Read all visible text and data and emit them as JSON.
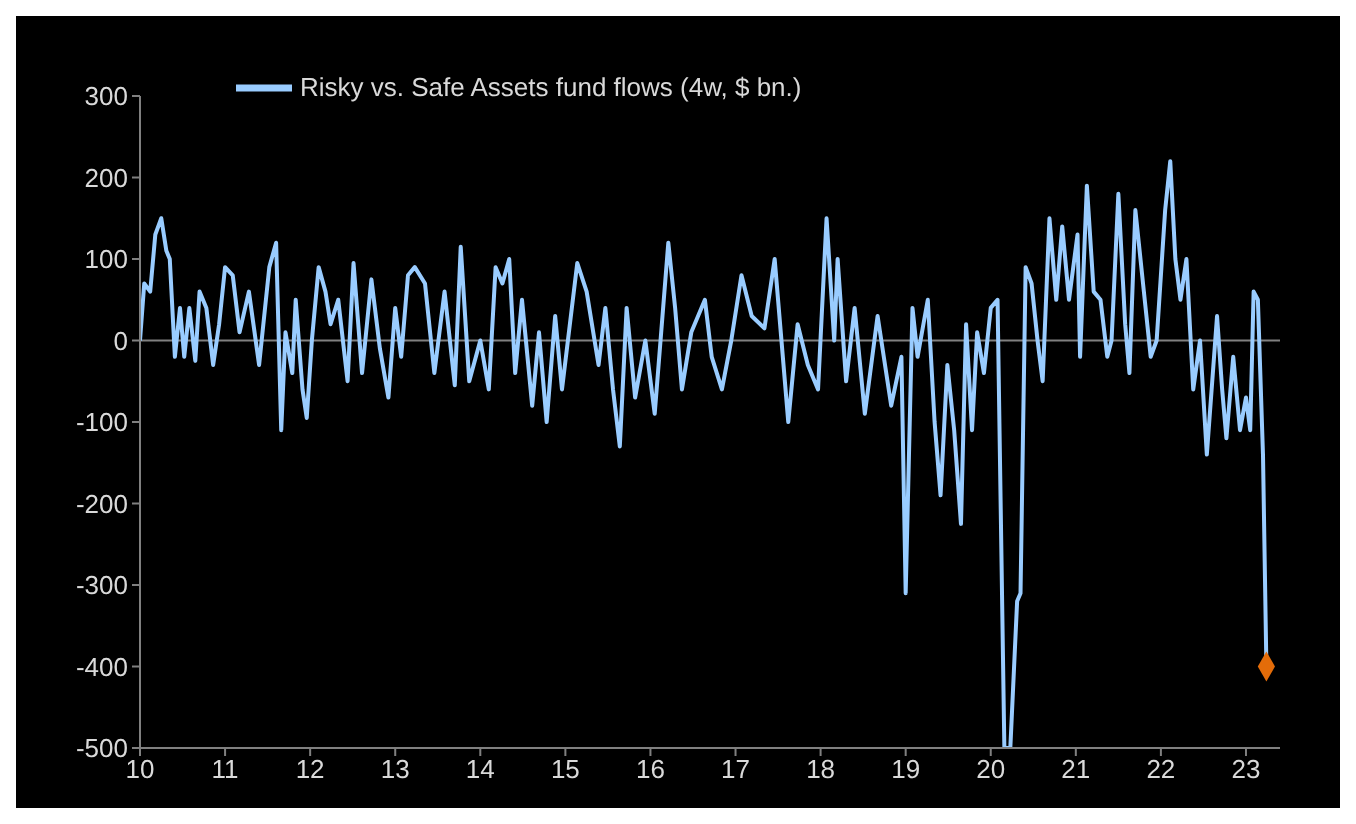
{
  "chart_data": {
    "type": "line",
    "x": [
      10.0,
      10.05,
      10.12,
      10.18,
      10.25,
      10.31,
      10.35,
      10.41,
      10.47,
      10.52,
      10.58,
      10.65,
      10.7,
      10.78,
      10.86,
      10.93,
      11.0,
      11.09,
      11.17,
      11.28,
      11.4,
      11.52,
      11.6,
      11.66,
      11.71,
      11.79,
      11.83,
      11.91,
      11.96,
      12.02,
      12.1,
      12.18,
      12.24,
      12.33,
      12.44,
      12.51,
      12.61,
      12.72,
      12.82,
      12.92,
      13.0,
      13.07,
      13.15,
      13.23,
      13.35,
      13.46,
      13.58,
      13.7,
      13.77,
      13.87,
      14.0,
      14.1,
      14.18,
      14.26,
      14.34,
      14.41,
      14.49,
      14.61,
      14.69,
      14.78,
      14.88,
      14.96,
      15.14,
      15.25,
      15.39,
      15.47,
      15.56,
      15.64,
      15.72,
      15.82,
      15.94,
      16.05,
      16.21,
      16.29,
      16.37,
      16.48,
      16.64,
      16.72,
      16.84,
      16.95,
      17.07,
      17.19,
      17.34,
      17.46,
      17.54,
      17.62,
      17.73,
      17.85,
      17.97,
      18.07,
      18.16,
      18.2,
      18.3,
      18.4,
      18.52,
      18.67,
      18.83,
      18.95,
      19.0,
      19.08,
      19.14,
      19.26,
      19.34,
      19.41,
      19.49,
      19.57,
      19.65,
      19.71,
      19.78,
      19.84,
      19.92,
      20.0,
      20.08,
      20.16,
      20.23,
      20.31,
      20.35,
      20.41,
      20.48,
      20.55,
      20.61,
      20.69,
      20.77,
      20.84,
      20.92,
      21.02,
      21.05,
      21.13,
      21.21,
      21.29,
      21.37,
      21.42,
      21.5,
      21.58,
      21.63,
      21.7,
      21.8,
      21.88,
      21.95,
      22.05,
      22.11,
      22.17,
      22.23,
      22.3,
      22.38,
      22.46,
      22.54,
      22.66,
      22.72,
      22.77,
      22.85,
      22.93,
      23.0,
      23.05,
      23.09,
      23.14,
      23.2,
      23.24
    ],
    "series": [
      {
        "name": "Risky vs. Safe Assets fund flows (4w, $ bn.)",
        "color": "#99ccff",
        "marker": "none",
        "values": [
          0,
          70,
          60,
          130,
          150,
          110,
          100,
          -20,
          40,
          -20,
          40,
          -25,
          60,
          40,
          -30,
          20,
          90,
          80,
          10,
          60,
          -30,
          90,
          120,
          -110,
          10,
          -40,
          50,
          -60,
          -95,
          0,
          90,
          60,
          20,
          50,
          -50,
          95,
          -40,
          75,
          -10,
          -70,
          40,
          -20,
          80,
          90,
          70,
          -40,
          60,
          -55,
          115,
          -50,
          0,
          -60,
          90,
          70,
          100,
          -40,
          50,
          -80,
          10,
          -100,
          30,
          -60,
          95,
          60,
          -30,
          40,
          -60,
          -130,
          40,
          -70,
          0,
          -90,
          120,
          40,
          -60,
          10,
          50,
          -20,
          -60,
          0,
          80,
          30,
          15,
          100,
          0,
          -100,
          20,
          -30,
          -60,
          150,
          0,
          100,
          -50,
          40,
          -90,
          30,
          -80,
          -20,
          -310,
          40,
          -20,
          50,
          -100,
          -190,
          -30,
          -110,
          -225,
          20,
          -110,
          10,
          -40,
          40,
          50,
          -500,
          -500,
          -320,
          -310,
          90,
          70,
          0,
          -50,
          150,
          50,
          140,
          50,
          130,
          -20,
          190,
          60,
          50,
          -20,
          0,
          180,
          20,
          -40,
          160,
          60,
          -20,
          0,
          160,
          220,
          100,
          50,
          100,
          -60,
          0,
          -140,
          30,
          -60,
          -120,
          -20,
          -110,
          -70,
          -110,
          60,
          50,
          -140,
          -400
        ]
      },
      {
        "type": "scatter",
        "color": "#e36c09",
        "marker": "diamond",
        "x": [
          23.24
        ],
        "values": [
          -400
        ]
      }
    ],
    "xlim": [
      10,
      23.4
    ],
    "xticks": [
      10,
      11,
      12,
      13,
      14,
      15,
      16,
      17,
      18,
      19,
      20,
      21,
      22,
      23
    ],
    "ylim": [
      -500,
      300
    ],
    "yticks": [
      -500,
      -400,
      -300,
      -200,
      -100,
      0,
      100,
      200,
      300
    ],
    "ref_lines": [
      {
        "axis": "y",
        "value": 0,
        "color": "#808080"
      }
    ],
    "grid": false,
    "legend": "top left"
  }
}
